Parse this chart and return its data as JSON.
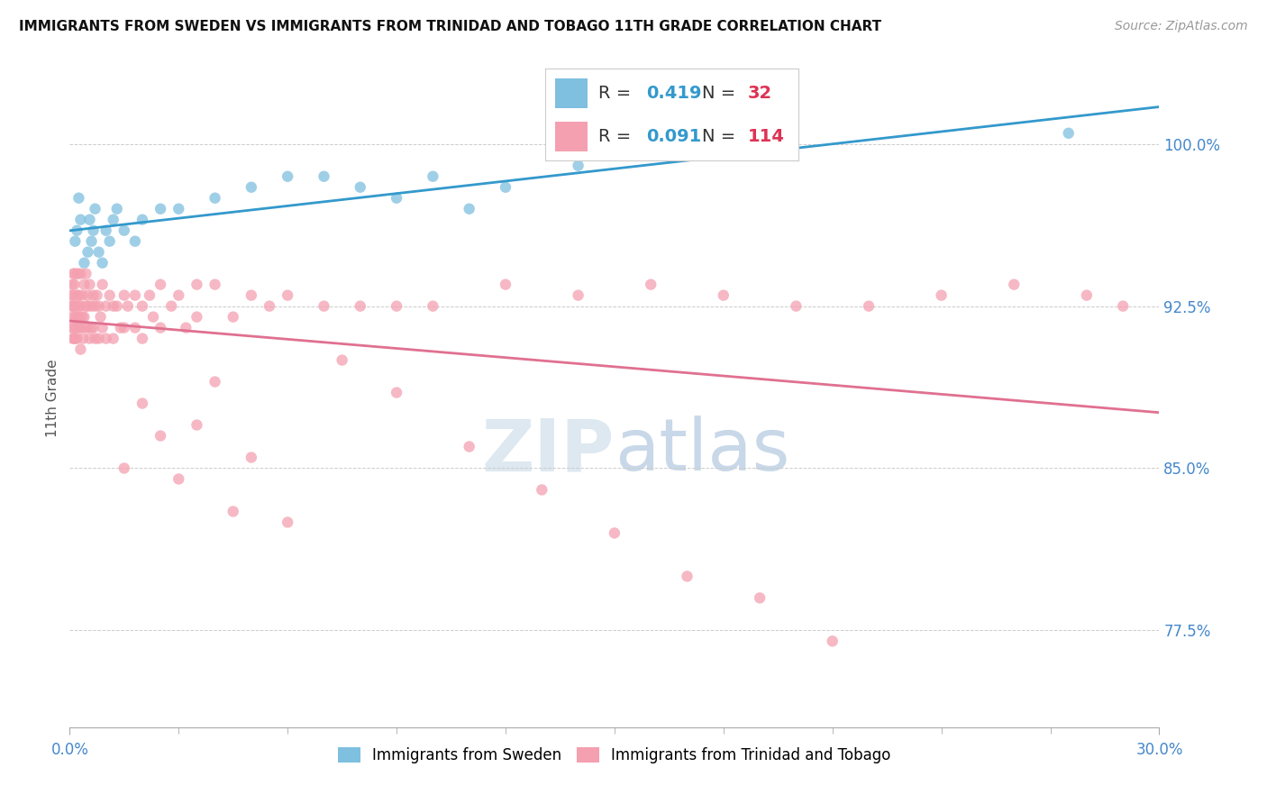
{
  "title": "IMMIGRANTS FROM SWEDEN VS IMMIGRANTS FROM TRINIDAD AND TOBAGO 11TH GRADE CORRELATION CHART",
  "source": "Source: ZipAtlas.com",
  "ylabel": "11th Grade",
  "ylim": [
    73.0,
    103.5
  ],
  "xlim": [
    0.0,
    30.0
  ],
  "yticks": [
    77.5,
    85.0,
    92.5,
    100.0
  ],
  "ytick_labels": [
    "77.5%",
    "85.0%",
    "92.5%",
    "100.0%"
  ],
  "sweden_R": 0.419,
  "sweden_N": 32,
  "tt_R": 0.091,
  "tt_N": 114,
  "sweden_color": "#7fbfdf",
  "tt_color": "#f4a0b0",
  "sweden_line_color": "#3399cc",
  "tt_line_color": "#e07090",
  "legend_R_color": "#3399cc",
  "legend_N_color": "#dd3355",
  "bg_color": "#ffffff",
  "watermark_color": "#dde8f0",
  "sweden_x": [
    0.15,
    0.2,
    0.25,
    0.3,
    0.4,
    0.5,
    0.55,
    0.6,
    0.65,
    0.7,
    0.8,
    0.9,
    1.0,
    1.1,
    1.2,
    1.3,
    1.5,
    1.8,
    2.0,
    2.5,
    3.0,
    4.0,
    5.0,
    6.0,
    7.0,
    8.0,
    9.0,
    10.0,
    11.0,
    12.0,
    14.0,
    27.5
  ],
  "sweden_y": [
    95.5,
    96.0,
    97.5,
    96.5,
    94.5,
    95.0,
    96.5,
    95.5,
    96.0,
    97.0,
    95.0,
    94.5,
    96.0,
    95.5,
    96.5,
    97.0,
    96.0,
    95.5,
    96.5,
    97.0,
    97.0,
    97.5,
    98.0,
    98.5,
    98.5,
    98.0,
    97.5,
    98.5,
    97.0,
    98.0,
    99.0,
    100.5
  ],
  "tt_x": [
    0.05,
    0.05,
    0.05,
    0.07,
    0.07,
    0.08,
    0.09,
    0.1,
    0.1,
    0.1,
    0.12,
    0.12,
    0.13,
    0.15,
    0.15,
    0.15,
    0.17,
    0.18,
    0.2,
    0.2,
    0.2,
    0.22,
    0.25,
    0.25,
    0.25,
    0.27,
    0.3,
    0.3,
    0.3,
    0.3,
    0.35,
    0.35,
    0.37,
    0.4,
    0.4,
    0.42,
    0.45,
    0.45,
    0.5,
    0.5,
    0.5,
    0.55,
    0.55,
    0.6,
    0.6,
    0.65,
    0.65,
    0.7,
    0.7,
    0.75,
    0.8,
    0.8,
    0.85,
    0.9,
    0.9,
    1.0,
    1.0,
    1.1,
    1.2,
    1.2,
    1.3,
    1.4,
    1.5,
    1.5,
    1.6,
    1.8,
    1.8,
    2.0,
    2.0,
    2.2,
    2.3,
    2.5,
    2.5,
    2.8,
    3.0,
    3.2,
    3.5,
    3.5,
    4.0,
    4.5,
    5.0,
    5.5,
    6.0,
    7.0,
    8.0,
    9.0,
    10.0,
    12.0,
    14.0,
    16.0,
    18.0,
    20.0,
    22.0,
    24.0,
    26.0,
    28.0,
    1.5,
    2.0,
    2.5,
    3.0,
    3.5,
    4.0,
    4.5,
    5.0,
    6.0,
    7.5,
    9.0,
    11.0,
    13.0,
    15.0,
    17.0,
    19.0,
    21.0,
    29.0
  ],
  "tt_y": [
    92.5,
    91.5,
    93.0,
    92.0,
    93.5,
    91.0,
    92.5,
    93.0,
    91.5,
    94.0,
    92.5,
    91.0,
    93.5,
    92.0,
    91.0,
    94.0,
    92.5,
    91.5,
    93.0,
    92.0,
    91.0,
    94.0,
    92.5,
    91.5,
    93.0,
    92.0,
    94.0,
    92.5,
    91.5,
    90.5,
    93.0,
    92.0,
    91.0,
    93.5,
    92.0,
    91.5,
    94.0,
    92.5,
    93.0,
    91.5,
    92.5,
    93.5,
    91.0,
    92.5,
    91.5,
    93.0,
    91.5,
    92.5,
    91.0,
    93.0,
    92.5,
    91.0,
    92.0,
    93.5,
    91.5,
    92.5,
    91.0,
    93.0,
    92.5,
    91.0,
    92.5,
    91.5,
    93.0,
    91.5,
    92.5,
    93.0,
    91.5,
    92.5,
    91.0,
    93.0,
    92.0,
    93.5,
    91.5,
    92.5,
    93.0,
    91.5,
    93.5,
    92.0,
    93.5,
    92.0,
    93.0,
    92.5,
    93.0,
    92.5,
    92.5,
    92.5,
    92.5,
    93.5,
    93.0,
    93.5,
    93.0,
    92.5,
    92.5,
    93.0,
    93.5,
    93.0,
    85.0,
    88.0,
    86.5,
    84.5,
    87.0,
    89.0,
    83.0,
    85.5,
    82.5,
    90.0,
    88.5,
    86.0,
    84.0,
    82.0,
    80.0,
    79.0,
    77.0,
    92.5
  ]
}
